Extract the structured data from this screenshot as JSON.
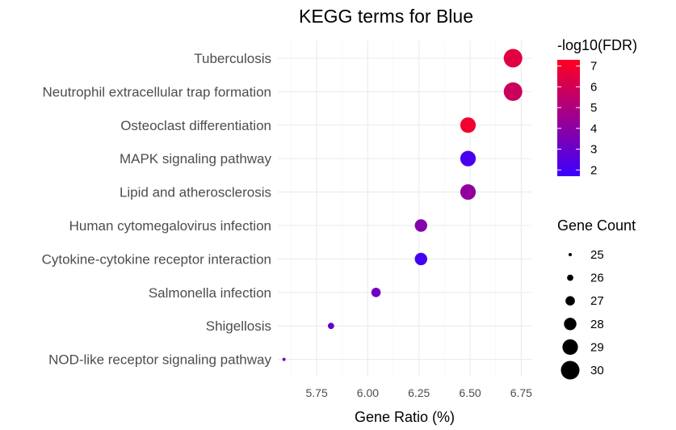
{
  "chart_data": {
    "type": "scatter",
    "title": "KEGG terms for Blue",
    "xlabel": "Gene Ratio (%)",
    "ylabel": "",
    "xlim": [
      5.56,
      6.8
    ],
    "xticks": [
      5.75,
      6.0,
      6.25,
      6.5,
      6.75
    ],
    "xtick_labels": [
      "5.75",
      "6.00",
      "6.25",
      "6.50",
      "6.75"
    ],
    "grid": true,
    "categories": [
      "Tuberculosis",
      "Neutrophil extracellular trap formation",
      "Osteoclast differentiation",
      "MAPK signaling pathway",
      "Lipid and atherosclerosis",
      "Human cytomegalovirus infection",
      "Cytokine-cytokine receptor interaction",
      "Salmonella infection",
      "Shigellosis",
      "NOD-like receptor signaling pathway"
    ],
    "points": [
      {
        "term": "Tuberculosis",
        "gene_ratio": 6.71,
        "gene_count": 30,
        "neg_log10_fdr": 6.5
      },
      {
        "term": "Neutrophil extracellular trap formation",
        "gene_ratio": 6.71,
        "gene_count": 30,
        "neg_log10_fdr": 5.8
      },
      {
        "term": "Osteoclast differentiation",
        "gene_ratio": 6.49,
        "gene_count": 29,
        "neg_log10_fdr": 7.0
      },
      {
        "term": "MAPK signaling pathway",
        "gene_ratio": 6.49,
        "gene_count": 29,
        "neg_log10_fdr": 2.1
      },
      {
        "term": "Lipid and atherosclerosis",
        "gene_ratio": 6.49,
        "gene_count": 29,
        "neg_log10_fdr": 4.2
      },
      {
        "term": "Human cytomegalovirus infection",
        "gene_ratio": 6.26,
        "gene_count": 28,
        "neg_log10_fdr": 3.8
      },
      {
        "term": "Cytokine-cytokine receptor interaction",
        "gene_ratio": 6.26,
        "gene_count": 28,
        "neg_log10_fdr": 2.0
      },
      {
        "term": "Salmonella infection",
        "gene_ratio": 6.04,
        "gene_count": 27,
        "neg_log10_fdr": 3.2
      },
      {
        "term": "Shigellosis",
        "gene_ratio": 5.82,
        "gene_count": 26,
        "neg_log10_fdr": 2.9
      },
      {
        "term": "NOD-like receptor signaling pathway",
        "gene_ratio": 5.59,
        "gene_count": 25,
        "neg_log10_fdr": 3.6
      }
    ],
    "color_legend": {
      "title": "-log10(FDR)",
      "min": 1.7,
      "max": 7.3,
      "low_color": "#3a00ff",
      "high_color": "#ff0022",
      "ticks": [
        2,
        3,
        4,
        5,
        6,
        7
      ],
      "tick_labels": [
        "2",
        "3",
        "4",
        "5",
        "6",
        "7"
      ]
    },
    "size_legend": {
      "title": "Gene Count",
      "values": [
        25,
        26,
        27,
        28,
        29,
        30
      ],
      "labels": [
        "25",
        "26",
        "27",
        "28",
        "29",
        "30"
      ]
    },
    "legend_position": "right"
  }
}
